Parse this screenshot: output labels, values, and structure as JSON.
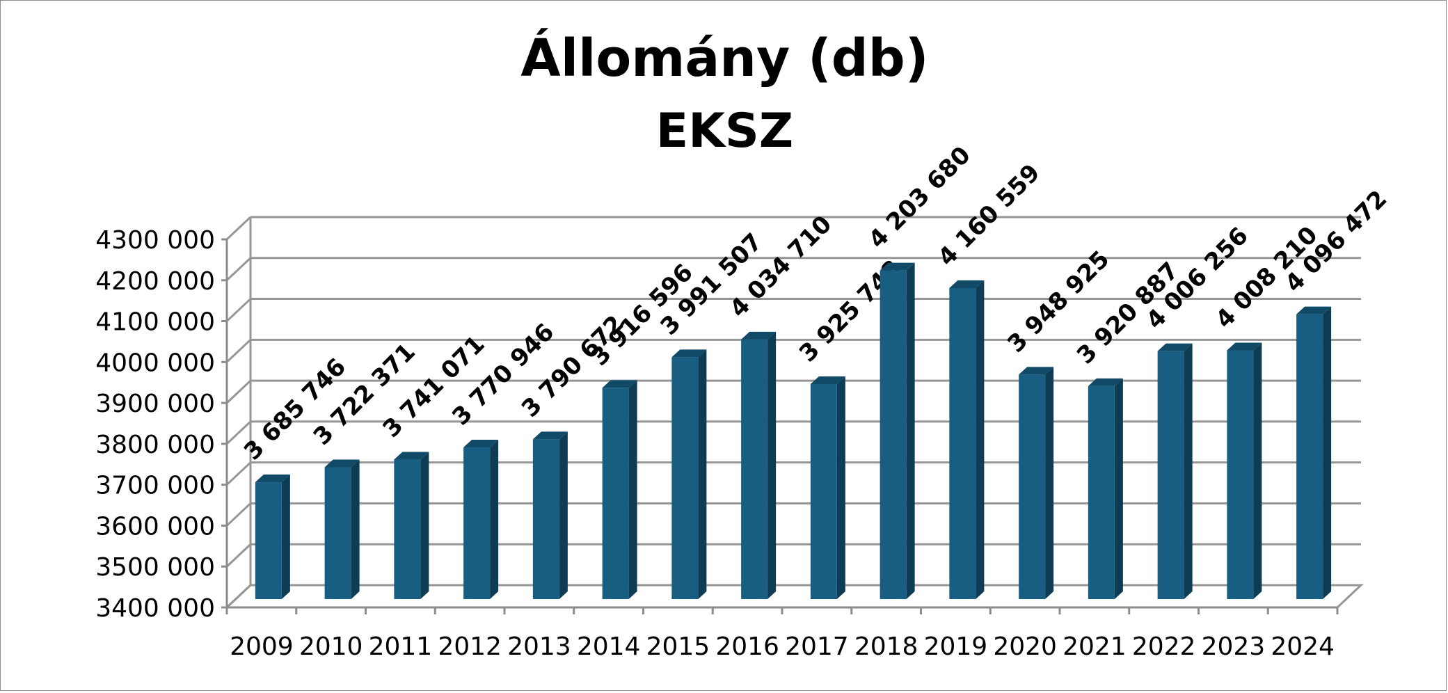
{
  "chart_data": {
    "type": "bar",
    "title": "Állomány (db)",
    "subtitle": "EKSZ",
    "categories": [
      "2009",
      "2010",
      "2011",
      "2012",
      "2013",
      "2014",
      "2015",
      "2016",
      "2017",
      "2018",
      "2019",
      "2020",
      "2021",
      "2022",
      "2023",
      "2024"
    ],
    "values": [
      3685746,
      3722371,
      3741071,
      3770946,
      3790672,
      3916596,
      3991507,
      4034710,
      3925748,
      4203680,
      4160559,
      3948925,
      3920887,
      4006256,
      4008210,
      4096472
    ],
    "data_labels": [
      "3 685 746",
      "3 722 371",
      "3 741 071",
      "3 770 946",
      "3 790 672",
      "3 916 596",
      "3 991 507",
      "4 034 710",
      "3 925 748",
      "4 203 680",
      "4 160 559",
      "3 948 925",
      "3 920 887",
      "4 006 256",
      "4 008 210",
      "4 096 472"
    ],
    "ylim": [
      3400000,
      4300000
    ],
    "y_ticks": [
      3400000,
      3500000,
      3600000,
      3700000,
      3800000,
      3900000,
      4000000,
      4100000,
      4200000,
      4300000
    ],
    "y_tick_labels": [
      "3400 000",
      "3500 000",
      "3600 000",
      "3700 000",
      "3800 000",
      "3900 000",
      "4000 000",
      "4100 000",
      "4200 000",
      "4300 000"
    ],
    "xlabel": "",
    "ylabel": "",
    "grid": true,
    "legend": "none",
    "bar_color": "#175e82",
    "bar_side_color": "#0e3c55",
    "bar_top_color": "#114a67",
    "gridline_color": "#969696"
  }
}
